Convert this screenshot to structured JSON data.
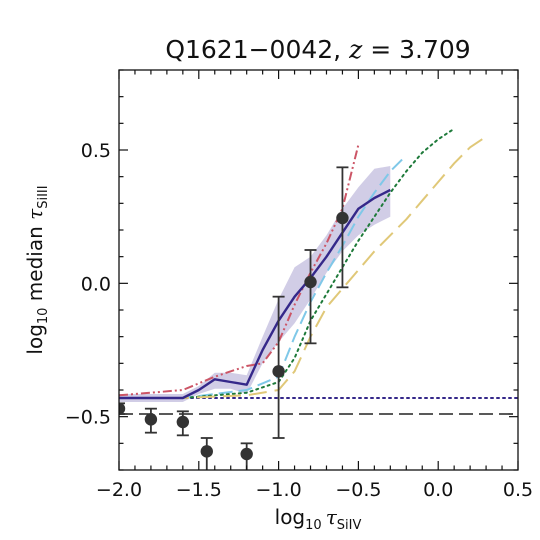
{
  "chart_data": {
    "type": "line",
    "title": {
      "prefix": "Q1621−0042, ",
      "var": "z",
      "suffix": " = 3.709"
    },
    "xlabel": {
      "pre": "log",
      "sub": "10",
      "sym": "τ",
      "symsub": "SiIV"
    },
    "ylabel": {
      "pre": "log",
      "sub": "10",
      "mid": " median ",
      "sym": "τ",
      "symsub": "SiIII"
    },
    "xlim": [
      -2.0,
      0.5
    ],
    "ylim": [
      -0.7,
      0.8
    ],
    "xticks": [
      -2.0,
      -1.5,
      -1.0,
      -0.5,
      0.0,
      0.5
    ],
    "xtick_labels": [
      "−2.0",
      "−1.5",
      "−1.0",
      "−0.5",
      "0.0",
      "0.5"
    ],
    "yticks": [
      -0.5,
      0.0,
      0.5
    ],
    "ytick_labels": [
      "−0.5",
      "0.0",
      "0.5"
    ],
    "grid": false,
    "colors": {
      "observed": "#333333",
      "model_main": "#35288a",
      "model_band": "#b9b2d9",
      "model_red": "#cc5566",
      "model_cyan": "#7fc8e8",
      "model_green": "#1e7a3a",
      "model_yellow": "#e0c878",
      "reference": "#222222"
    },
    "observed_points": {
      "x": [
        -2.0,
        -1.8,
        -1.6,
        -1.45,
        -1.2,
        -1.0,
        -0.8,
        -0.6
      ],
      "y": [
        -0.47,
        -0.51,
        -0.52,
        -0.63,
        -0.64,
        -0.33,
        0.005,
        0.245
      ],
      "yerr_low": [
        0.02,
        0.05,
        0.05,
        0.09,
        0.09,
        0.25,
        0.23,
        0.26
      ],
      "yerr_high": [
        0.02,
        0.04,
        0.04,
        0.05,
        0.04,
        0.28,
        0.12,
        0.19
      ]
    },
    "model_band": {
      "x": [
        -2.0,
        -1.8,
        -1.6,
        -1.5,
        -1.4,
        -1.3,
        -1.2,
        -1.1,
        -1.0,
        -0.9,
        -0.8,
        -0.7,
        -0.6,
        -0.5,
        -0.4,
        -0.3
      ],
      "low": [
        -0.445,
        -0.445,
        -0.445,
        -0.415,
        -0.395,
        -0.395,
        -0.415,
        -0.3,
        -0.22,
        -0.15,
        -0.06,
        0.04,
        0.12,
        0.18,
        0.22,
        0.25
      ],
      "high": [
        -0.415,
        -0.415,
        -0.415,
        -0.385,
        -0.335,
        -0.335,
        -0.345,
        -0.2,
        -0.06,
        0.06,
        0.1,
        0.18,
        0.28,
        0.36,
        0.43,
        0.44
      ]
    },
    "series": [
      {
        "x": [
          -2.0,
          -1.8,
          -1.6,
          -1.5,
          -1.4,
          -1.3,
          -1.2,
          -1.1,
          -1.0,
          -0.9,
          -0.8,
          -0.7,
          -0.6,
          -0.5,
          -0.4,
          -0.3
        ],
        "y": [
          -0.43,
          -0.43,
          -0.43,
          -0.4,
          -0.36,
          -0.37,
          -0.38,
          -0.25,
          -0.14,
          -0.05,
          0.02,
          0.1,
          0.19,
          0.28,
          0.32,
          0.35
        ],
        "color_key": "model_main",
        "dash": "solid"
      },
      {
        "x": [
          -2.0,
          -1.8,
          -1.6,
          -1.4,
          -1.2,
          -1.1,
          -1.0,
          -0.9,
          -0.8,
          -0.7,
          -0.6,
          -0.5
        ],
        "y": [
          -0.42,
          -0.41,
          -0.4,
          -0.35,
          -0.31,
          -0.3,
          -0.22,
          -0.08,
          0.04,
          0.15,
          0.28,
          0.52
        ],
        "color_key": "model_red",
        "dash": "dashdotdot"
      },
      {
        "x": [
          -2.0,
          -1.6,
          -1.2,
          -1.0,
          -0.9,
          -0.8,
          -0.7,
          -0.6,
          -0.5,
          -0.4,
          -0.3,
          -0.2
        ],
        "y": [
          -0.43,
          -0.43,
          -0.4,
          -0.35,
          -0.2,
          -0.07,
          0.04,
          0.14,
          0.25,
          0.34,
          0.42,
          0.48
        ],
        "color_key": "model_cyan",
        "dash": "dashed"
      },
      {
        "x": [
          -2.0,
          -1.6,
          -1.2,
          -1.0,
          -0.9,
          -0.8,
          -0.7,
          -0.6,
          -0.5,
          -0.4,
          -0.3,
          -0.2,
          -0.1,
          0.0,
          0.1
        ],
        "y": [
          -0.43,
          -0.43,
          -0.41,
          -0.37,
          -0.28,
          -0.14,
          -0.04,
          0.06,
          0.16,
          0.25,
          0.34,
          0.42,
          0.49,
          0.54,
          0.58
        ],
        "color_key": "model_green",
        "dash": "dotted"
      },
      {
        "x": [
          -2.0,
          -1.6,
          -1.2,
          -1.0,
          -0.9,
          -0.8,
          -0.7,
          -0.6,
          -0.5,
          -0.4,
          -0.3,
          -0.2,
          -0.1,
          0.0,
          0.1,
          0.2,
          0.3
        ],
        "y": [
          -0.43,
          -0.43,
          -0.42,
          -0.4,
          -0.33,
          -0.2,
          -0.09,
          -0.02,
          0.05,
          0.12,
          0.18,
          0.24,
          0.31,
          0.38,
          0.45,
          0.51,
          0.55
        ],
        "color_key": "model_yellow",
        "dash": "longdash"
      }
    ],
    "reference_lines": [
      {
        "y": -0.49,
        "dash": "dashed"
      },
      {
        "y": -0.43,
        "dash": "dotted"
      }
    ]
  }
}
